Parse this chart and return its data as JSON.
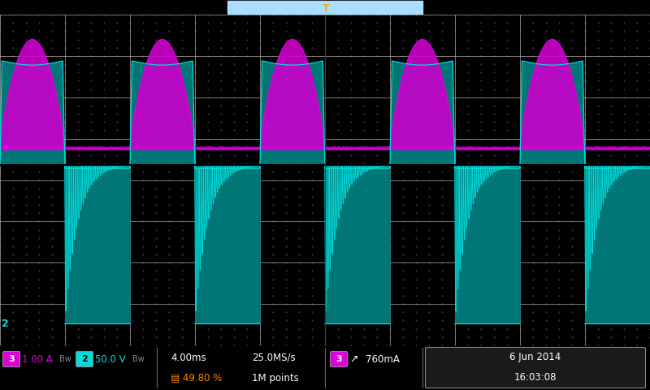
{
  "screen_bg": "#f0f0f0",
  "grid_color": "#b0b0b0",
  "dot_color": "#999999",
  "ch3_color": "#dd00dd",
  "ch3_fill": "#cc00cc",
  "ch2_color": "#00dddd",
  "ch2_dark": "#007777",
  "ch2_fill": "#008888",
  "status_bg": "#1a1a1a",
  "orange_text": "#ff8800",
  "ch3_label_color": "#dd00dd",
  "ch2_label_color": "#00dddd",
  "white": "#ffffff",
  "num_cycles": 5,
  "t_total": 40.0,
  "duty_cycle": 0.498,
  "ch3_scale": "1.00 A",
  "ch2_scale": "50.0 V",
  "sample_rate": "25.0MS/s",
  "points": "1M points",
  "trigger": "760mA",
  "date": "6 Jun 2014",
  "time_str": "16:03:08",
  "timebase": "4.00ms",
  "duty_pct": "49.80 %",
  "cursor_color": "#ffaa00",
  "top_bar_bg": "#c8c8c8",
  "num_hdivs": 10,
  "num_vdivs": 8
}
